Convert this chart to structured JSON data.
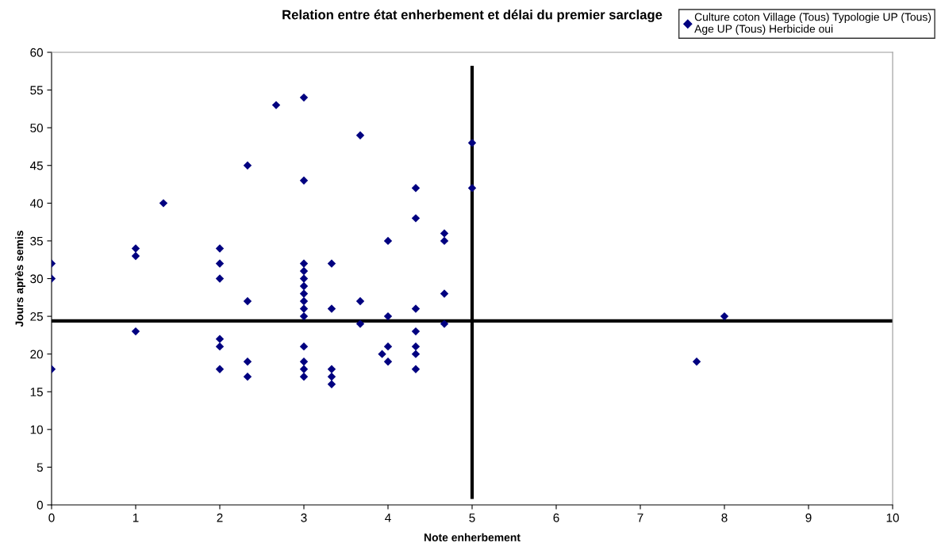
{
  "chart_data": {
    "type": "scatter",
    "title": "Relation entre état enherbement et délai du premier sarclage",
    "xlabel": "Note enherbement",
    "ylabel": "Jours après semis",
    "xlim": [
      0,
      10
    ],
    "xticks": [
      0,
      1,
      2,
      3,
      4,
      5,
      6,
      7,
      8,
      9,
      10
    ],
    "ylim": [
      0,
      60
    ],
    "yticks": [
      0,
      5,
      10,
      15,
      20,
      25,
      30,
      35,
      40,
      45,
      50,
      55,
      60
    ],
    "grid": false,
    "legend": "top right",
    "marker": "diamond",
    "series": [
      {
        "name": "Culture coton Village (Tous) Typologie UP (Tous)\nAge UP (Tous) Herbicide oui",
        "color": "#000080",
        "x": [
          0,
          0,
          0,
          1,
          1,
          1,
          1.33,
          2,
          2,
          2,
          2,
          2,
          2,
          2.33,
          2.33,
          2.33,
          2.33,
          2.67,
          3,
          3,
          3,
          3,
          3,
          3,
          3,
          3,
          3,
          3,
          3,
          3,
          3,
          3,
          3.33,
          3.33,
          3.33,
          3.33,
          3.33,
          3.67,
          3.67,
          3.67,
          3.93,
          4,
          4,
          4,
          4,
          4.33,
          4.33,
          4.33,
          4.33,
          4.33,
          4.33,
          4.33,
          4.67,
          4.67,
          4.67,
          4.67,
          5,
          5,
          7.67,
          8
        ],
        "values": [
          32,
          30,
          18,
          34,
          33,
          23,
          40,
          34,
          32,
          30,
          22,
          21,
          18,
          45,
          27,
          19,
          17,
          53,
          54,
          43,
          32,
          31,
          30,
          29,
          28,
          27,
          26,
          25,
          21,
          19,
          18,
          17,
          32,
          26,
          18,
          17,
          16,
          49,
          27,
          24,
          20,
          35,
          25,
          21,
          19,
          42,
          38,
          26,
          23,
          21,
          20,
          18,
          36,
          35,
          28,
          24,
          48,
          42,
          19,
          25
        ]
      },
      {
        "color": "#000000",
        "type": "line",
        "marker": "none",
        "x": [
          0,
          10
        ],
        "values": [
          24.4,
          24.4
        ]
      },
      {
        "color": "#000000",
        "type": "line",
        "marker": "none",
        "x": [
          5,
          5
        ],
        "values": [
          1,
          58
        ]
      }
    ]
  }
}
